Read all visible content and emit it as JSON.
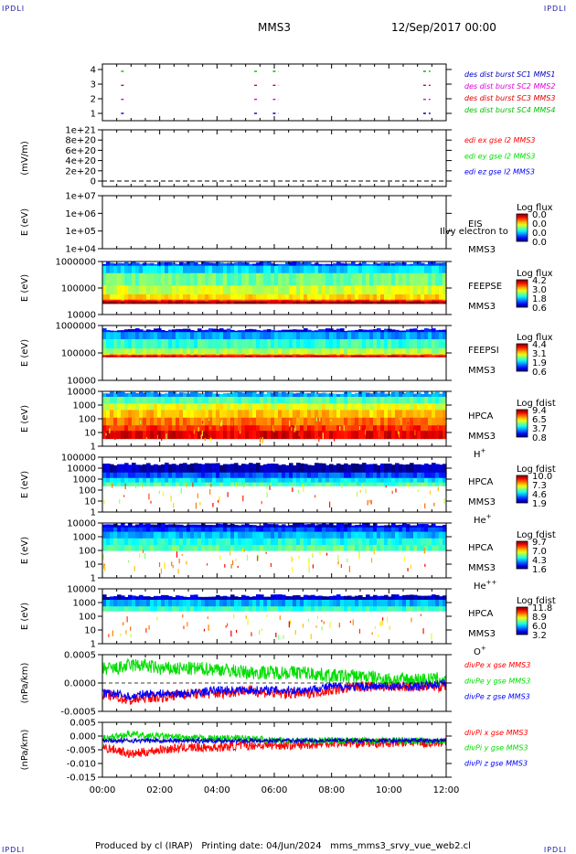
{
  "page": {
    "corner_label": "IPDLI",
    "spacecraft": "MMS3",
    "date_title": "12/Sep/2017 00:00",
    "footer": "Produced by cl (IRAP)   Printing date: 04/Jun/2024   mms_mms3_srvy_vue_web2.cl"
  },
  "time_axis": {
    "start_hour": 0,
    "end_hour": 12,
    "tick_labels": [
      "00:00",
      "02:00",
      "04:00",
      "06:00",
      "08:00",
      "10:00",
      "12:00"
    ]
  },
  "colors": {
    "mms1": "#0000c0",
    "mms2": "#e000e0",
    "mms3": "#e00000",
    "mms4": "#00c000",
    "x": "#ff0000",
    "y": "#00dd00",
    "z": "#0000ff"
  },
  "chart_data": [
    {
      "id": "burst",
      "type": "scatter",
      "ylabel": "",
      "y_ticks": [
        "1",
        "2",
        "3",
        "4"
      ],
      "legend": [
        {
          "text": "des dist burst SC1 MMS1",
          "color": "mms1"
        },
        {
          "text": "des dist burst SC2 MMS2",
          "color": "mms2"
        },
        {
          "text": "des dist burst SC3 MMS3",
          "color": "mms3"
        },
        {
          "text": "des dist burst SC4 MMS4",
          "color": "mms4"
        }
      ],
      "series": [
        {
          "name": "des dist burst SC1 MMS1",
          "level": 1,
          "intervals": [
            [
              0.65,
              0.75
            ],
            [
              5.3,
              5.4
            ],
            [
              5.95,
              6.15
            ],
            [
              11.2,
              11.45
            ]
          ]
        },
        {
          "name": "des dist burst SC2 MMS2",
          "level": 2,
          "intervals": [
            [
              0.65,
              0.75
            ],
            [
              5.3,
              5.4
            ],
            [
              5.95,
              6.15
            ],
            [
              11.2,
              11.45
            ]
          ]
        },
        {
          "name": "des dist burst SC3 MMS3",
          "level": 3,
          "intervals": [
            [
              0.65,
              0.75
            ],
            [
              5.3,
              5.4
            ],
            [
              5.95,
              6.15
            ],
            [
              11.2,
              11.45
            ]
          ]
        },
        {
          "name": "des dist burst SC4 MMS4",
          "level": 4,
          "intervals": [
            [
              0.65,
              0.75
            ],
            [
              5.3,
              5.4
            ],
            [
              5.95,
              6.15
            ],
            [
              11.2,
              11.45
            ]
          ]
        }
      ]
    },
    {
      "id": "edi",
      "type": "line",
      "ylabel": "(mV/m)",
      "y_ticks": [
        "0",
        "2e+20",
        "4e+20",
        "6e+20",
        "8e+20",
        "1e+21"
      ],
      "legend": [
        {
          "text": "edi ex gse l2 MMS3",
          "color": "x"
        },
        {
          "text": "edi ey gse l2 MMS3",
          "color": "y"
        },
        {
          "text": "edi ez gse l2 MMS3",
          "color": "z"
        }
      ],
      "series": [
        {
          "name": "edi ex gse l2 MMS3",
          "x": [
            0,
            12
          ],
          "y": [
            0,
            0
          ]
        }
      ]
    },
    {
      "id": "eis",
      "type": "heatmap",
      "ylabel": "E (eV)",
      "y_ticks": [
        "1e+04",
        "1e+05",
        "1e+06",
        "1e+07"
      ],
      "side": [
        "EIS",
        "MMS3"
      ],
      "overlay": "Ilvy electron to",
      "cbar_title": "Log flux",
      "cbar_ticks": [
        "0.0",
        "0.0",
        "0.0",
        "0.0"
      ],
      "values": []
    },
    {
      "id": "feepse",
      "type": "heatmap",
      "ylabel": "E (eV)",
      "y_ticks": [
        "10000",
        "100000",
        "1000000"
      ],
      "side": [
        "FEEPSE",
        "MMS3"
      ],
      "cbar_title": "Log flux",
      "cbar_ticks": [
        "4.2",
        "3.0",
        "1.8",
        "0.6"
      ],
      "bands": [
        {
          "top": 0.0,
          "bottom": 0.08,
          "level": 0.18
        },
        {
          "top": 0.08,
          "bottom": 0.22,
          "level": 0.34
        },
        {
          "top": 0.22,
          "bottom": 0.45,
          "level": 0.48
        },
        {
          "top": 0.45,
          "bottom": 0.62,
          "level": 0.58
        },
        {
          "top": 0.62,
          "bottom": 0.72,
          "level": 0.66
        },
        {
          "top": 0.72,
          "bottom": 0.75,
          "level": 0.82
        },
        {
          "top": 0.75,
          "bottom": 0.79,
          "level": 0.98
        }
      ]
    },
    {
      "id": "feepsi",
      "type": "heatmap",
      "ylabel": "E (eV)",
      "y_ticks": [
        "10000",
        "100000",
        "1000000"
      ],
      "side": [
        "FEEPSI",
        "MMS3"
      ],
      "cbar_title": "Log flux",
      "cbar_ticks": [
        "4.4",
        "3.1",
        "1.9",
        "0.6"
      ],
      "bands": [
        {
          "top": 0.05,
          "bottom": 0.12,
          "level": 0.12
        },
        {
          "top": 0.12,
          "bottom": 0.25,
          "level": 0.28
        },
        {
          "top": 0.25,
          "bottom": 0.42,
          "level": 0.42
        },
        {
          "top": 0.42,
          "bottom": 0.52,
          "level": 0.55
        },
        {
          "top": 0.52,
          "bottom": 0.54,
          "level": 0.7
        },
        {
          "top": 0.54,
          "bottom": 0.57,
          "level": 0.9
        }
      ]
    },
    {
      "id": "hpca_h",
      "type": "heatmap",
      "ylabel": "E (eV)",
      "y_ticks": [
        "1",
        "10",
        "100",
        "1000",
        "10000"
      ],
      "side": [
        "HPCA",
        "MMS3",
        "H",
        "+"
      ],
      "cbar_title": "Log fdist",
      "cbar_ticks": [
        "9.4",
        "6.5",
        "3.7",
        "0.8"
      ],
      "bands": [
        {
          "top": 0.0,
          "bottom": 0.1,
          "level": 0.28
        },
        {
          "top": 0.1,
          "bottom": 0.22,
          "level": 0.45
        },
        {
          "top": 0.22,
          "bottom": 0.34,
          "level": 0.6
        },
        {
          "top": 0.34,
          "bottom": 0.48,
          "level": 0.68
        },
        {
          "top": 0.48,
          "bottom": 0.62,
          "level": 0.76
        },
        {
          "top": 0.62,
          "bottom": 0.72,
          "level": 0.84
        },
        {
          "top": 0.72,
          "bottom": 0.86,
          "level": 0.9
        }
      ]
    },
    {
      "id": "hpca_he",
      "type": "heatmap",
      "ylabel": "E (eV)",
      "y_ticks": [
        "1",
        "10",
        "100",
        "1000",
        "10000",
        "100000"
      ],
      "side": [
        "HPCA",
        "MMS3",
        "He",
        "+"
      ],
      "cbar_title": "Log fdist",
      "cbar_ticks": [
        "10.0",
        "7.3",
        "4.6",
        "1.9"
      ],
      "bands": [
        {
          "top": 0.1,
          "bottom": 0.28,
          "level": 0.05
        },
        {
          "top": 0.28,
          "bottom": 0.38,
          "level": 0.2
        },
        {
          "top": 0.38,
          "bottom": 0.46,
          "level": 0.35
        },
        {
          "top": 0.46,
          "bottom": 0.52,
          "level": 0.45
        }
      ]
    },
    {
      "id": "hpca_hepp",
      "type": "heatmap",
      "ylabel": "E (eV)",
      "y_ticks": [
        "1",
        "10",
        "100",
        "1000",
        "10000"
      ],
      "side": [
        "HPCA",
        "MMS3",
        "He",
        "++"
      ],
      "cbar_title": "Log fdist",
      "cbar_ticks": [
        "9.7",
        "7.0",
        "4.3",
        "1.6"
      ],
      "bands": [
        {
          "top": 0.0,
          "bottom": 0.08,
          "level": 0.08
        },
        {
          "top": 0.08,
          "bottom": 0.16,
          "level": 0.18
        },
        {
          "top": 0.16,
          "bottom": 0.28,
          "level": 0.3
        },
        {
          "top": 0.28,
          "bottom": 0.4,
          "level": 0.4
        },
        {
          "top": 0.4,
          "bottom": 0.5,
          "level": 0.46
        }
      ]
    },
    {
      "id": "hpca_o",
      "type": "heatmap",
      "ylabel": "E (eV)",
      "y_ticks": [
        "1",
        "10",
        "100",
        "1000",
        "10000"
      ],
      "side": [
        "HPCA",
        "MMS3",
        "O",
        "+"
      ],
      "cbar_title": "Log fdist",
      "cbar_ticks": [
        "11.8",
        "8.9",
        "6.0",
        "3.2"
      ],
      "bands": [
        {
          "top": 0.1,
          "bottom": 0.2,
          "level": 0.08
        },
        {
          "top": 0.2,
          "bottom": 0.32,
          "level": 0.3
        },
        {
          "top": 0.32,
          "bottom": 0.4,
          "level": 0.42
        }
      ]
    },
    {
      "id": "divpe",
      "type": "line",
      "ylabel": "(nPa/km)",
      "y_ticks": [
        "-0.0005",
        "0.0000",
        "0.0005"
      ],
      "ylim": [
        -0.0008,
        0.0008
      ],
      "legend": [
        {
          "text": "divPe x gse MMS3",
          "color": "x"
        },
        {
          "text": "divPe y gse MMS3",
          "color": "y"
        },
        {
          "text": "divPe z gse MMS3",
          "color": "z"
        }
      ],
      "series": [
        {
          "name": "divPe x gse MMS3",
          "color": "x",
          "x": [
            0,
            0.5,
            1,
            1.5,
            2,
            3,
            4,
            5,
            6,
            7,
            8,
            9,
            10,
            11,
            12
          ],
          "y": [
            -0.0003,
            -0.0004,
            -0.0005,
            -0.0004,
            -0.0004,
            -0.0003,
            -0.0003,
            -0.0002,
            -0.0003,
            -0.0003,
            -0.0002,
            -0.0001,
            -0.0001,
            -0.0001,
            -0.0001
          ],
          "noise": 0.00015
        },
        {
          "name": "divPe y gse MMS3",
          "color": "y",
          "x": [
            0,
            0.5,
            1,
            1.5,
            2,
            3,
            4,
            5,
            6,
            7,
            8,
            9,
            10,
            11,
            12
          ],
          "y": [
            0.0004,
            0.0004,
            0.0005,
            0.0005,
            0.0004,
            0.0004,
            0.0004,
            0.0003,
            0.0003,
            0.0003,
            0.0002,
            0.0002,
            0.0001,
            0.0001,
            0.0001
          ],
          "noise": 0.0002
        },
        {
          "name": "divPe z gse MMS3",
          "color": "z",
          "x": [
            0,
            0.5,
            1,
            1.5,
            2,
            3,
            4,
            5,
            6,
            7,
            8,
            9,
            10,
            11,
            12
          ],
          "y": [
            -0.0003,
            -0.0003,
            -0.0004,
            -0.0003,
            -0.0003,
            -0.0003,
            -0.0002,
            -0.0002,
            -0.0002,
            -0.0002,
            -0.0001,
            -0.0001,
            -0.0001,
            -0.0001,
            0.0
          ],
          "noise": 0.00012
        }
      ]
    },
    {
      "id": "divpi",
      "type": "line",
      "ylabel": "(nPa/km)",
      "y_ticks": [
        "-0.015",
        "-0.010",
        "-0.005",
        "0.000",
        "0.005"
      ],
      "ylim": [
        -0.016,
        0.008
      ],
      "legend": [
        {
          "text": "divPi x gse MMS3",
          "color": "x"
        },
        {
          "text": "divPi y gse MMS3",
          "color": "y"
        },
        {
          "text": "divPi z gse MMS3",
          "color": "z"
        }
      ],
      "series": [
        {
          "name": "divPi x gse MMS3",
          "color": "x",
          "x": [
            0,
            0.5,
            1,
            1.5,
            2,
            3,
            4,
            5,
            6,
            7,
            8,
            9,
            10,
            11,
            12
          ],
          "y": [
            -0.003,
            -0.004,
            -0.006,
            -0.005,
            -0.004,
            -0.003,
            -0.003,
            -0.002,
            -0.002,
            -0.002,
            -0.001,
            -0.001,
            -0.001,
            -0.001,
            -0.001
          ],
          "noise": 0.002
        },
        {
          "name": "divPi y gse MMS3",
          "color": "y",
          "x": [
            0,
            0.5,
            1,
            1.5,
            2,
            3,
            4,
            5,
            6,
            7,
            8,
            9,
            10,
            11,
            12
          ],
          "y": [
            0.001,
            0.002,
            0.003,
            0.002,
            0.002,
            0.001,
            0.001,
            0.001,
            0.0,
            0.0,
            0.0,
            0.0,
            0.0,
            0.0,
            0.0
          ],
          "noise": 0.0015
        },
        {
          "name": "divPi z gse MMS3",
          "color": "z",
          "x": [
            0,
            0.5,
            1,
            1.5,
            2,
            3,
            4,
            5,
            6,
            7,
            8,
            9,
            10,
            11,
            12
          ],
          "y": [
            0.0,
            0.0,
            0.0,
            0.0,
            0.0,
            0.0,
            0.0,
            0.0,
            0.0,
            0.0,
            0.0,
            0.0,
            0.0,
            0.0,
            0.0
          ],
          "noise": 0.001
        }
      ]
    }
  ]
}
